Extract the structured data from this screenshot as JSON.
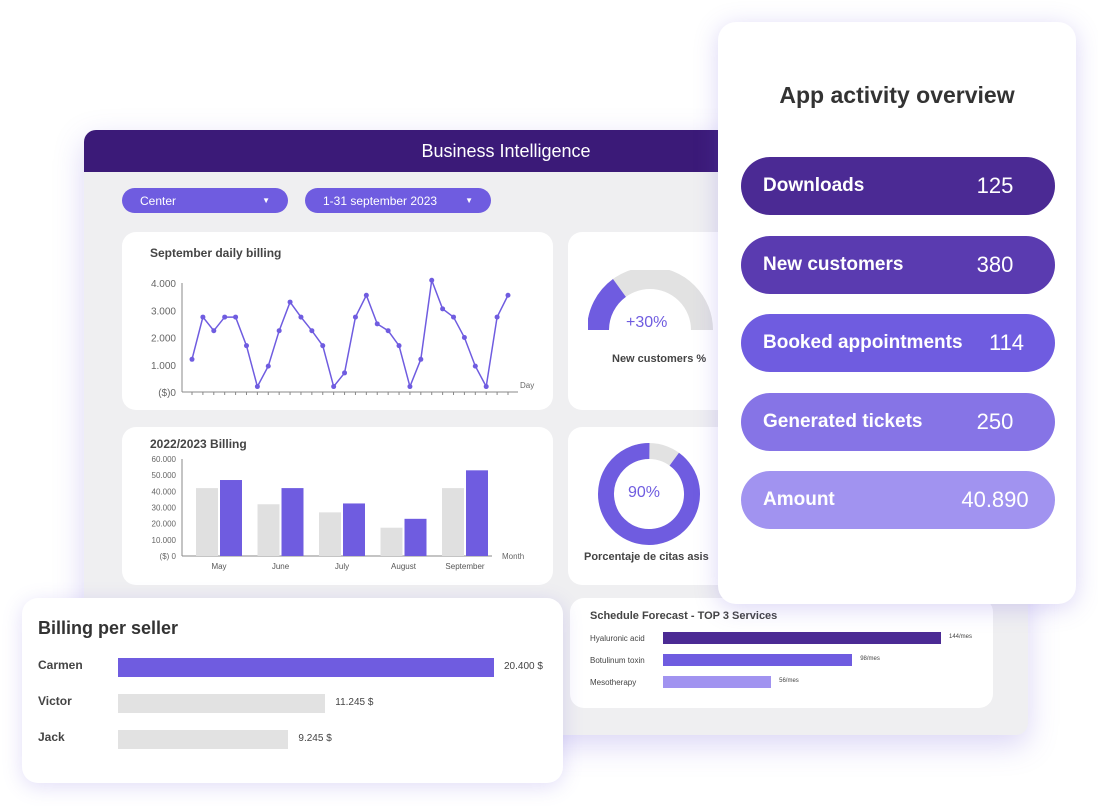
{
  "header": {
    "title": "Business Intelligence"
  },
  "filters": {
    "center": "Center",
    "date": "1-31 september 2023"
  },
  "daily": {
    "title": "September daily billing",
    "y_ticks": [
      "($)0",
      "1.000",
      "2.000",
      "3.000",
      "4.000"
    ],
    "xlabel": "Day"
  },
  "gauge1": {
    "value": "+30%",
    "label": "New customers %",
    "fraction": 0.3
  },
  "gauge2": {
    "value": "90%",
    "label": "Porcentaje de citas asis",
    "fraction": 0.9
  },
  "billing": {
    "title": "2022/2023 Billing",
    "y_ticks": [
      "($) 0",
      "10.000",
      "20.000",
      "30.000",
      "40.000",
      "50.000",
      "60.000"
    ],
    "xlabel": "Month"
  },
  "schedule": {
    "title": "Schedule Forecast - TOP 3 Services",
    "items": [
      {
        "label": "Hyaluronic acid",
        "value": 144,
        "text": "144/mes",
        "color": "#4b2a94"
      },
      {
        "label": "Botulinum toxin",
        "value": 98,
        "text": "98/mes",
        "color": "#6f5ce0"
      },
      {
        "label": "Mesotherapy",
        "value": 56,
        "text": "56/mes",
        "color": "#a193f0"
      }
    ]
  },
  "seller": {
    "title": "Billing per seller",
    "items": [
      {
        "name": "Carmen",
        "value": 20400,
        "text": "20.400 $",
        "color": "#6f5ce0"
      },
      {
        "name": "Victor",
        "value": 11245,
        "text": "11.245 $",
        "color": "#e2e2e2"
      },
      {
        "name": "Jack",
        "value": 9245,
        "text": "9.245 $",
        "color": "#e2e2e2"
      }
    ]
  },
  "overview": {
    "title": "App activity overview",
    "items": [
      {
        "label": "Downloads",
        "value": "125",
        "color": "#4b2a94"
      },
      {
        "label": "New customers",
        "value": "380",
        "color": "#5a3bb0"
      },
      {
        "label": "Booked appointments",
        "value": "114",
        "color": "#6f5ce0"
      },
      {
        "label": "Generated tickets",
        "value": "250",
        "color": "#8674e6"
      },
      {
        "label": "Amount",
        "value": "40.890",
        "color": "#a193f0"
      }
    ]
  },
  "chart_data": [
    {
      "type": "line",
      "title": "September daily billing",
      "xlabel": "Day",
      "ylabel": "($)",
      "ylim": [
        0,
        4000
      ],
      "x": [
        1,
        2,
        3,
        4,
        5,
        6,
        7,
        8,
        9,
        10,
        11,
        12,
        13,
        14,
        15,
        16,
        17,
        18,
        19,
        20,
        21,
        22,
        23,
        24,
        25,
        26,
        27,
        28,
        29,
        30
      ],
      "values": [
        1200,
        2750,
        2250,
        2750,
        2750,
        1700,
        200,
        950,
        2250,
        3300,
        2750,
        2250,
        1700,
        200,
        700,
        2750,
        3550,
        2500,
        2250,
        1700,
        200,
        1200,
        4100,
        3050,
        2750,
        2000,
        950,
        200,
        2750,
        3550
      ]
    },
    {
      "type": "bar",
      "title": "2022/2023 Billing",
      "xlabel": "Month",
      "ylabel": "($)",
      "ylim": [
        0,
        60000
      ],
      "categories": [
        "May",
        "June",
        "July",
        "August",
        "September"
      ],
      "series": [
        {
          "values": [
            42000,
            32000,
            27000,
            17500,
            42000
          ],
          "color": "#e0e0e0"
        },
        {
          "values": [
            47000,
            42000,
            32500,
            23000,
            53000
          ],
          "color": "#6f5ce0"
        }
      ]
    }
  ]
}
